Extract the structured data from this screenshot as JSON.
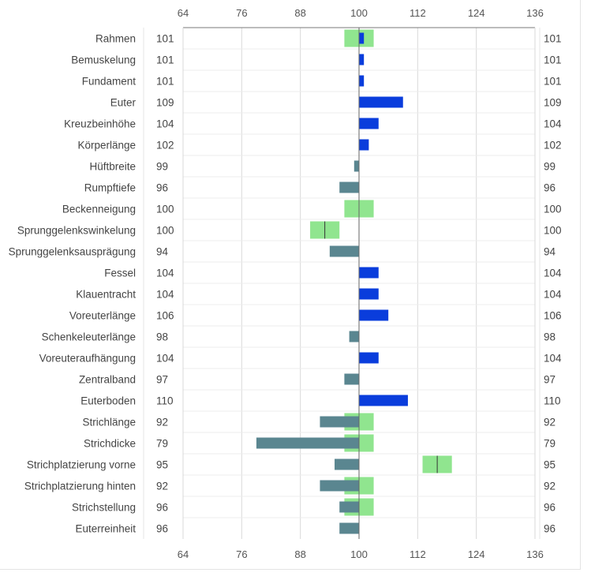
{
  "chart_data": {
    "type": "bar",
    "orientation": "horizontal",
    "baseline": 100,
    "xlim": [
      64,
      136
    ],
    "xticks": [
      64,
      76,
      88,
      100,
      112,
      124,
      136
    ],
    "grid": true,
    "colors": {
      "above": "#0a3ddc",
      "below": "#5a8690",
      "range": "#90e58f",
      "range_marker": "#333333",
      "axis": "#7a7a7a",
      "grid": "#d9d9d9"
    },
    "categories": [
      "Rahmen",
      "Bemuskelung",
      "Fundament",
      "Euter",
      "Kreuzbeinhöhe",
      "Körperlänge",
      "Hüftbreite",
      "Rumpftiefe",
      "Beckenneigung",
      "Sprunggelenkswinkelung",
      "Sprunggelenksausprägung",
      "Fessel",
      "Klauentracht",
      "Voreuterlänge",
      "Schenkeleuterlänge",
      "Voreuteraufhängung",
      "Zentralband",
      "Euterboden",
      "Strichlänge",
      "Strichdicke",
      "Strichplatzierung vorne",
      "Strichplatzierung hinten",
      "Strichstellung",
      "Euterreinheit"
    ],
    "values": [
      101,
      101,
      101,
      109,
      104,
      102,
      99,
      96,
      100,
      100,
      94,
      104,
      104,
      106,
      98,
      104,
      97,
      110,
      92,
      79,
      95,
      92,
      96,
      96
    ],
    "ranges": [
      {
        "category": "Rahmen",
        "from": 97,
        "to": 103,
        "marker": null
      },
      {
        "category": "Beckenneigung",
        "from": 97,
        "to": 103,
        "marker": 100
      },
      {
        "category": "Sprunggelenkswinkelung",
        "from": 90,
        "to": 96,
        "marker": 93
      },
      {
        "category": "Strichlänge",
        "from": 97,
        "to": 103,
        "marker": null
      },
      {
        "category": "Strichdicke",
        "from": 97,
        "to": 103,
        "marker": null
      },
      {
        "category": "Strichplatzierung vorne",
        "from": 113,
        "to": 119,
        "marker": 116
      },
      {
        "category": "Strichplatzierung hinten",
        "from": 97,
        "to": 103,
        "marker": null
      },
      {
        "category": "Strichstellung",
        "from": 97,
        "to": 103,
        "marker": null
      }
    ]
  }
}
